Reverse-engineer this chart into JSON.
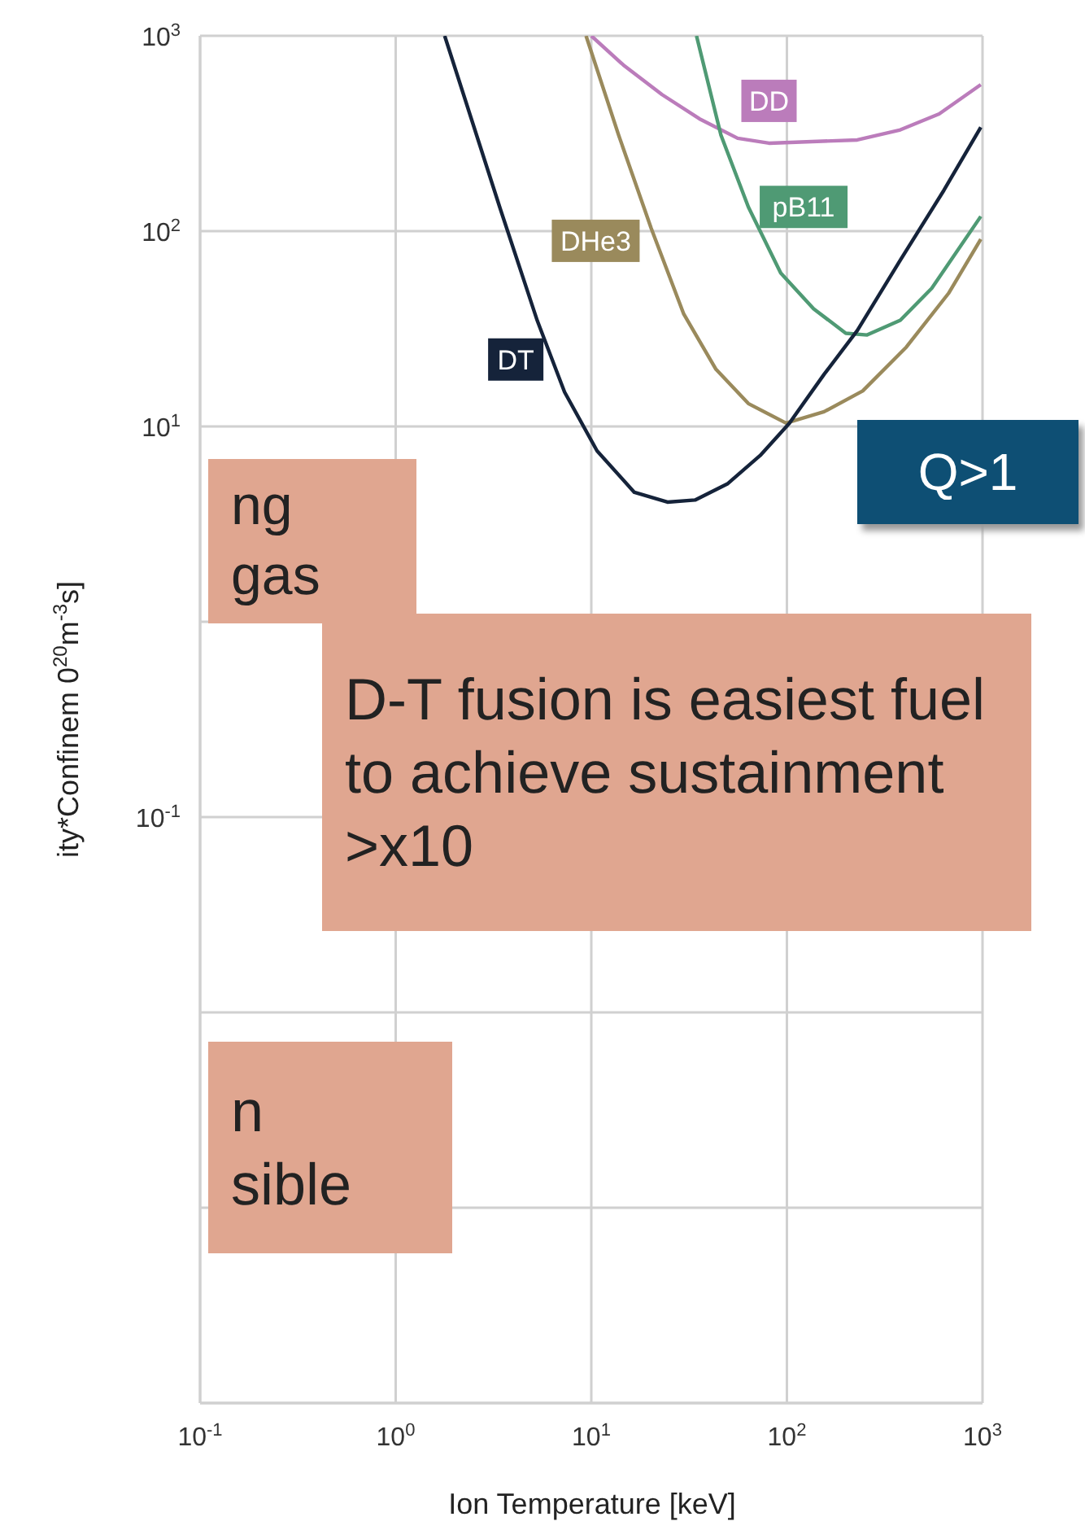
{
  "chart_data": {
    "type": "line",
    "xlabel": "Ion Temperature [keV]",
    "ylabel": "ity*Confinem 0$^{20}$m$^{-3}$s]",
    "log": "xy",
    "grid": true,
    "xlim": [
      0.1,
      1000
    ],
    "xticks": [
      {
        "value": 0.1,
        "label": "10$^{-1}$"
      },
      {
        "value": 1,
        "label": "10$^{0}$"
      },
      {
        "value": 10,
        "label": "10$^{1}$"
      },
      {
        "value": 100,
        "label": "10$^{2}$"
      },
      {
        "value": 1000,
        "label": "10$^{3}$"
      }
    ],
    "ylim": [
      0.0001,
      1000
    ],
    "yticks": [
      {
        "value": 0.0001,
        "label": null
      },
      {
        "value": 0.001,
        "label": null
      },
      {
        "value": 0.01,
        "label": null
      },
      {
        "value": 0.1,
        "label": "10$^{-1}$"
      },
      {
        "value": 1,
        "label": null
      },
      {
        "value": 10,
        "label": "10$^{1}$"
      },
      {
        "value": 100,
        "label": "10$^{2}$"
      },
      {
        "value": 1000,
        "label": "10$^{3}$"
      }
    ],
    "series": [
      {
        "name": "DD",
        "color": "#bb7cbb",
        "x": [
          10,
          14.6,
          23,
          35.7,
          56,
          81,
          229,
          380,
          600,
          980
        ],
        "values": [
          1000,
          708,
          500,
          376,
          299,
          282,
          293,
          330,
          398,
          562
        ]
      },
      {
        "name": "pB11",
        "color": "#4f9a74",
        "x": [
          34.5,
          46,
          63.5,
          93,
          137,
          200,
          257,
          380,
          550,
          980
        ],
        "values": [
          1000,
          310,
          133,
          61,
          40,
          30,
          29.4,
          35,
          51,
          119
        ]
      },
      {
        "name": "DHe3",
        "color": "#9a8a5c",
        "x": [
          9.4,
          13.8,
          20.2,
          29.7,
          43.4,
          63.5,
          99,
          155,
          244,
          408,
          670,
          980
        ],
        "values": [
          1000,
          310,
          104,
          37.6,
          19.6,
          13.1,
          10.4,
          11.9,
          15.2,
          25.5,
          48,
          91
        ]
      },
      {
        "name": "DT",
        "color": "#15233a",
        "x": [
          1.78,
          3.4,
          5.3,
          7.3,
          10.7,
          16.6,
          24.5,
          33.9,
          49.9,
          73,
          103,
          155,
          229,
          380,
          635,
          980
        ],
        "values": [
          1000,
          133,
          34.7,
          15,
          7.5,
          4.6,
          4.1,
          4.2,
          5.1,
          7.1,
          10.4,
          18.5,
          31,
          71,
          162,
          340
        ]
      }
    ],
    "annotations": [
      "ng gas",
      "D-T fusion is easiest fuel to achieve sustainment >x10",
      "Q>1",
      "n\nsible"
    ]
  }
}
